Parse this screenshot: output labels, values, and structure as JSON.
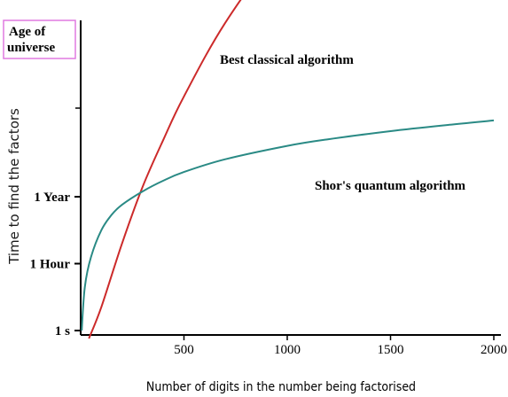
{
  "chart_data": {
    "type": "line",
    "xlabel": "Number of digits in the number being factorised",
    "ylabel": "Time to find the factors",
    "xlim": [
      0,
      2000
    ],
    "x_ticks": [
      500,
      1000,
      1500,
      2000
    ],
    "x_tick_labels": [
      "500",
      "1000",
      "1500",
      "2000"
    ],
    "y_scale": "logarithmic (qualitative)",
    "y_ticks": [
      {
        "label": "1 s"
      },
      {
        "label": "1 Hour"
      },
      {
        "label": "1 Year"
      }
    ],
    "y_top_label": "Age of\nuniverse",
    "y_top_label_lines": [
      "Age of",
      "universe"
    ],
    "grid": false,
    "series": [
      {
        "name": "Best classical algorithm",
        "color": "#cc2a2a",
        "x": [
          40,
          100,
          200,
          300,
          400,
          500,
          700,
          1000,
          1200,
          1500,
          1800,
          2000
        ],
        "y": [
          -0.9,
          0.35,
          1.3,
          2.15,
          2.85,
          3.5,
          4.6,
          5.9,
          6.65,
          7.65,
          8.5,
          9.05
        ]
      },
      {
        "name": "Shor's quantum algorithm",
        "color": "#2a8a85",
        "x": [
          5,
          20,
          50,
          100,
          150,
          200,
          300,
          400,
          500,
          700,
          1000,
          1200,
          1500,
          1800,
          2000
        ],
        "y": [
          0.0,
          0.65,
          1.1,
          1.5,
          1.73,
          1.88,
          2.08,
          2.24,
          2.37,
          2.56,
          2.76,
          2.86,
          2.98,
          3.08,
          3.14
        ]
      }
    ],
    "y_tick_levels": [
      0,
      1,
      2
    ],
    "y_top_level": 9.7
  },
  "colors": {
    "axis": "#000000",
    "top_label_border": "#e07ae0",
    "ylabel_color": "#1a1a1a"
  }
}
